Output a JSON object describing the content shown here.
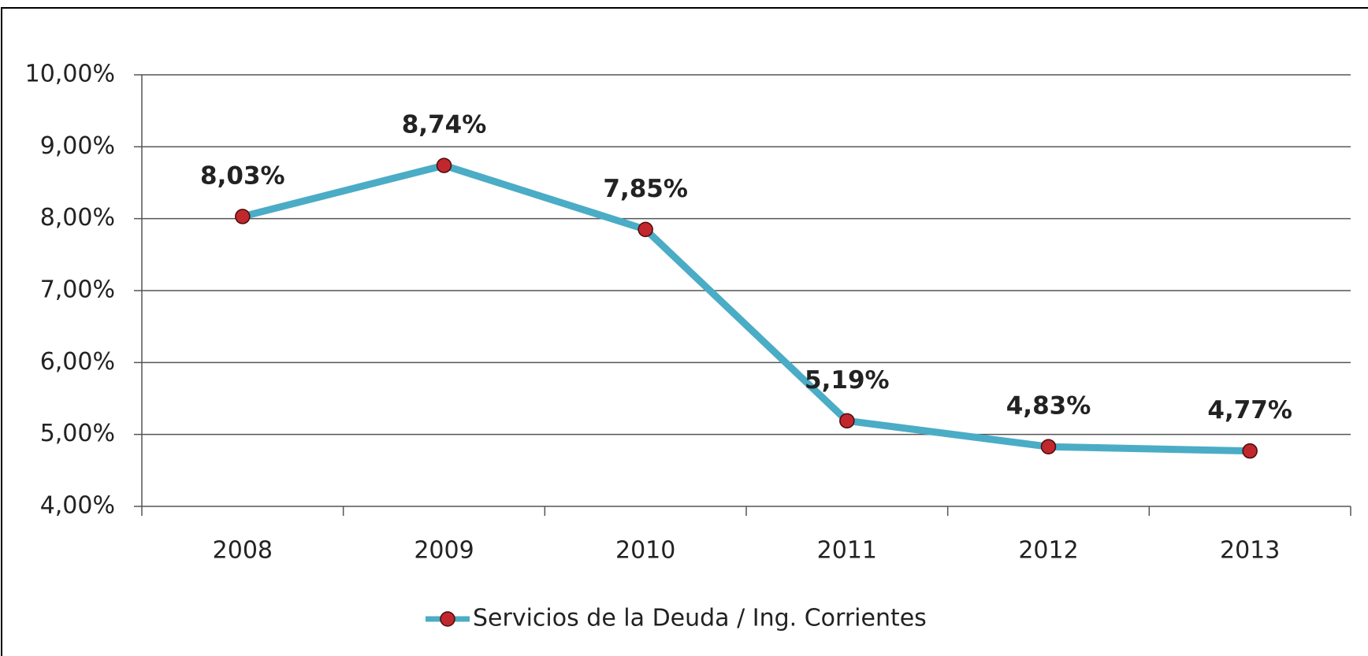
{
  "chart_data": {
    "type": "line",
    "categories": [
      "2008",
      "2009",
      "2010",
      "2011",
      "2012",
      "2013"
    ],
    "series": [
      {
        "name": "Servicios de la Deuda / Ing. Corrientes",
        "color": "#4bacc6",
        "marker_color": "#c0282d",
        "values": [
          8.03,
          8.74,
          7.85,
          5.19,
          4.83,
          4.77
        ],
        "value_labels": [
          "8,03%",
          "8,74%",
          "7,85%",
          "5,19%",
          "4,83%",
          "4,77%"
        ]
      }
    ],
    "ylim": [
      4,
      10
    ],
    "yticks": [
      {
        "value": 4,
        "label": "4,00%"
      },
      {
        "value": 5,
        "label": "5,00%"
      },
      {
        "value": 6,
        "label": "6,00%"
      },
      {
        "value": 7,
        "label": "7,00%"
      },
      {
        "value": 8,
        "label": "8,00%"
      },
      {
        "value": 9,
        "label": "9,00%"
      },
      {
        "value": 10,
        "label": "10,00%"
      }
    ],
    "grid": true,
    "legend": "bottom"
  }
}
